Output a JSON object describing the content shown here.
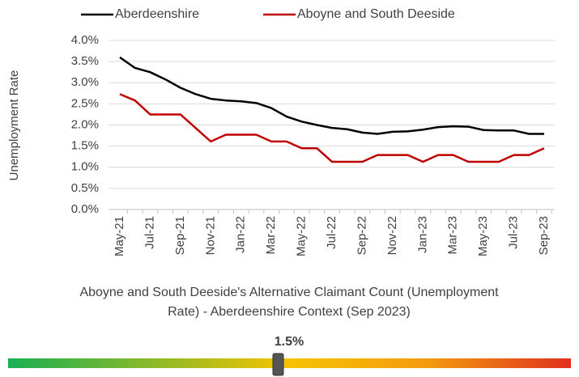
{
  "chart_data": {
    "type": "line",
    "y_label": "Unemployment Rate",
    "categories": [
      "May-21",
      null,
      "Jul-21",
      null,
      "Sep-21",
      null,
      "Nov-21",
      null,
      "Jan-22",
      null,
      "Mar-22",
      null,
      "May-22",
      null,
      "Jul-22",
      null,
      "Sep-22",
      null,
      "Nov-22",
      null,
      "Jan-23",
      null,
      "Mar-23",
      null,
      "May-23",
      null,
      "Jul-23",
      null,
      "Sep-23"
    ],
    "series": [
      {
        "name": "Aberdeenshire",
        "color": "#000000",
        "values": [
          3.6,
          3.35,
          3.25,
          3.08,
          2.88,
          2.73,
          2.62,
          2.58,
          2.56,
          2.52,
          2.4,
          2.2,
          2.08,
          2.0,
          1.93,
          1.9,
          1.82,
          1.79,
          1.84,
          1.85,
          1.89,
          1.95,
          1.97,
          1.96,
          1.88,
          1.87,
          1.87,
          1.79,
          1.79
        ]
      },
      {
        "name": "Aboyne and South Deeside",
        "color": "#c00000",
        "values": [
          2.73,
          2.58,
          2.25,
          2.25,
          2.25,
          1.93,
          1.61,
          1.77,
          1.77,
          1.77,
          1.61,
          1.61,
          1.45,
          1.45,
          1.13,
          1.13,
          1.13,
          1.29,
          1.29,
          1.29,
          1.13,
          1.29,
          1.29,
          1.13,
          1.13,
          1.13,
          1.29,
          1.29,
          1.45
        ]
      }
    ],
    "ylim": [
      0,
      4
    ],
    "yticks": [
      {
        "value": 0,
        "label": "0.0%"
      },
      {
        "value": 0.5,
        "label": "0.5%"
      },
      {
        "value": 1,
        "label": "1.0%"
      },
      {
        "value": 1.5,
        "label": "1.5%"
      },
      {
        "value": 2,
        "label": "2.0%"
      },
      {
        "value": 2.5,
        "label": "2.5%"
      },
      {
        "value": 3,
        "label": "3.0%"
      },
      {
        "value": 3.5,
        "label": "3.5%"
      },
      {
        "value": 4,
        "label": "4.0%"
      }
    ],
    "grid": true,
    "legend": "top"
  },
  "caption": [
    "Aboyne and South Deeside's Alternative Claimant Count (Unemployment",
    "Rate) - Aberdeenshire Context (Sep 2023)"
  ],
  "gauge": {
    "value": 1.5,
    "label": "1.5%"
  }
}
